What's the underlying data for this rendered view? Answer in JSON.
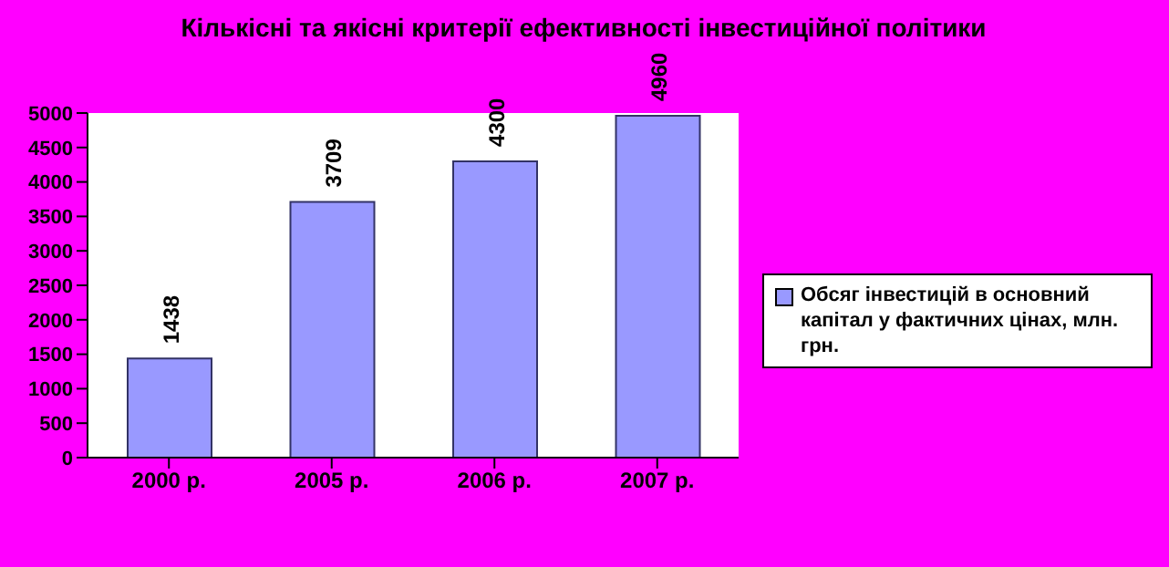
{
  "chart_data": {
    "type": "bar",
    "title": "Кількісні та якісні критерії ефективності інвестиційної політики",
    "categories": [
      "2000 р.",
      "2005 р.",
      "2006 р.",
      "2007 р."
    ],
    "series": [
      {
        "name": "Обсяг інвестицій в основний капітал у фактичних цінах, млн. грн.",
        "color": "#9999ff",
        "values": [
          1438,
          3709,
          4300,
          4960
        ]
      }
    ],
    "ylim": [
      0,
      5000
    ],
    "yticks": [
      0,
      500,
      1000,
      1500,
      2000,
      2500,
      3000,
      3500,
      4000,
      4500,
      5000
    ],
    "data_labels": true,
    "legend": "right",
    "grid": false
  }
}
